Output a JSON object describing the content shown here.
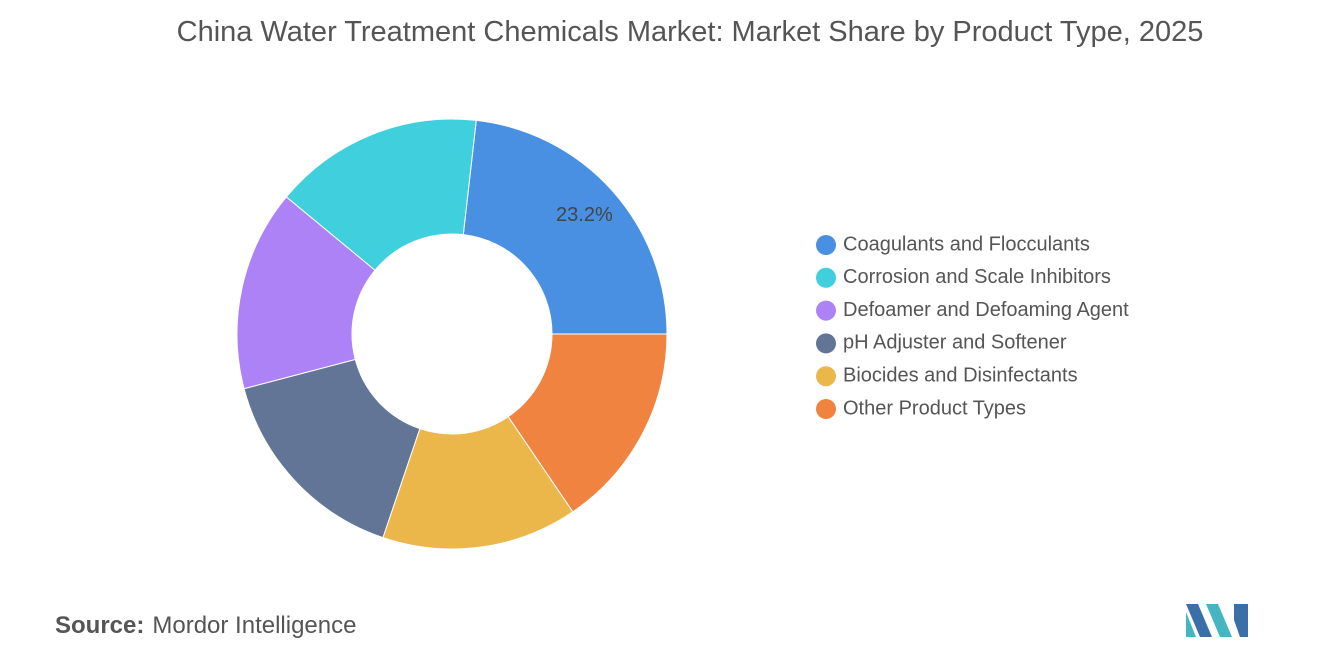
{
  "chart_data": {
    "type": "donut",
    "title": "China Water Treatment Chemicals Market: Market Share by Product Type, 2025",
    "categories": [
      "Coagulants and Flocculants",
      "Corrosion and Scale Inhibitors",
      "Defoamer and Defoaming Agent",
      "pH Adjuster and Softener",
      "Biocides and Disinfectants",
      "Other Product Types"
    ],
    "values": [
      23.2,
      15.8,
      15.1,
      15.7,
      14.7,
      15.5
    ],
    "value_labels": [
      "23.2%",
      null,
      null,
      null,
      null,
      null
    ],
    "colors": [
      "#4a90e2",
      "#40cfdc",
      "#ad82f7",
      "#637596",
      "#ebb74a",
      "#f08340"
    ],
    "legend": "right"
  },
  "source": {
    "label": "Source:",
    "text": "Mordor Intelligence"
  }
}
